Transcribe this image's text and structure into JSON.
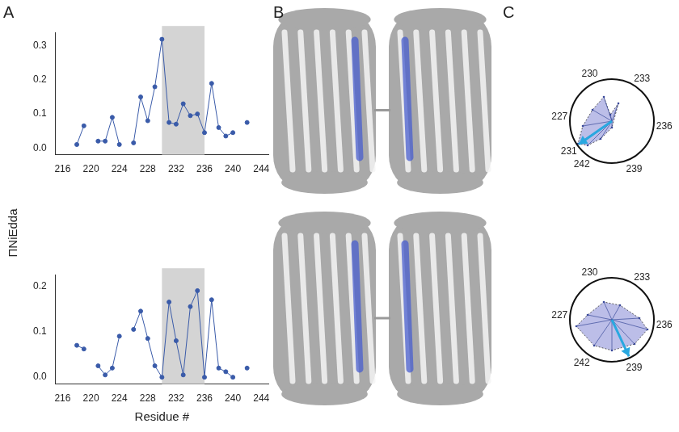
{
  "panel_labels": [
    "A",
    "B",
    "C"
  ],
  "y_label": "ΠNiEdda",
  "chart_data": [
    {
      "type": "line",
      "x": [
        218,
        219,
        220,
        221,
        222,
        223,
        224,
        225,
        226,
        227,
        228,
        229,
        230,
        231,
        232,
        233,
        234,
        235,
        236,
        237,
        238,
        239,
        240,
        241,
        242
      ],
      "values": [
        0.01,
        0.065,
        null,
        0.02,
        0.02,
        0.09,
        0.01,
        null,
        0.015,
        0.15,
        0.08,
        0.18,
        0.32,
        0.075,
        0.07,
        0.13,
        0.095,
        0.1,
        0.045,
        0.19,
        0.06,
        0.035,
        0.045,
        null,
        0.075
      ],
      "color": "#3a5ba9",
      "marker": "circle",
      "xlim": [
        215,
        245
      ],
      "xticks": [
        216,
        220,
        224,
        228,
        232,
        236,
        240,
        244
      ],
      "ylim": [
        -0.02,
        0.34
      ],
      "yticks": [
        {
          "value": 0,
          "label": "0.0"
        },
        0.1,
        0.2,
        0.3
      ],
      "grid": false,
      "highlight": [
        230,
        236
      ]
    },
    {
      "type": "line",
      "x": [
        218,
        219,
        220,
        221,
        222,
        223,
        224,
        225,
        226,
        227,
        228,
        229,
        230,
        231,
        232,
        233,
        234,
        235,
        236,
        237,
        238,
        239,
        240,
        241,
        242
      ],
      "values": [
        0.07,
        0.062,
        null,
        0.025,
        0.005,
        0.02,
        0.09,
        null,
        0.105,
        0.145,
        0.085,
        0.025,
        0.0,
        0.165,
        0.08,
        0.005,
        0.155,
        0.19,
        0.0,
        0.17,
        0.02,
        0.012,
        0.0,
        null,
        0.02
      ],
      "color": "#3a5ba9",
      "marker": "circle",
      "x_label": "Residue #",
      "xlim": [
        215,
        245
      ],
      "xticks": [
        216,
        220,
        224,
        228,
        232,
        236,
        240,
        244
      ],
      "ylim": [
        -0.015,
        0.225
      ],
      "yticks": [
        {
          "value": 0,
          "label": "0.0"
        },
        0.1,
        0.2
      ],
      "grid": false,
      "highlight": [
        230,
        236
      ]
    }
  ],
  "helical_wheels": [
    {
      "labels": [
        230,
        233,
        236,
        239,
        242,
        227,
        231
      ],
      "arrow": 231
    },
    {
      "labels": [
        230,
        233,
        236,
        239,
        242,
        227
      ],
      "arrow": 239
    }
  ]
}
